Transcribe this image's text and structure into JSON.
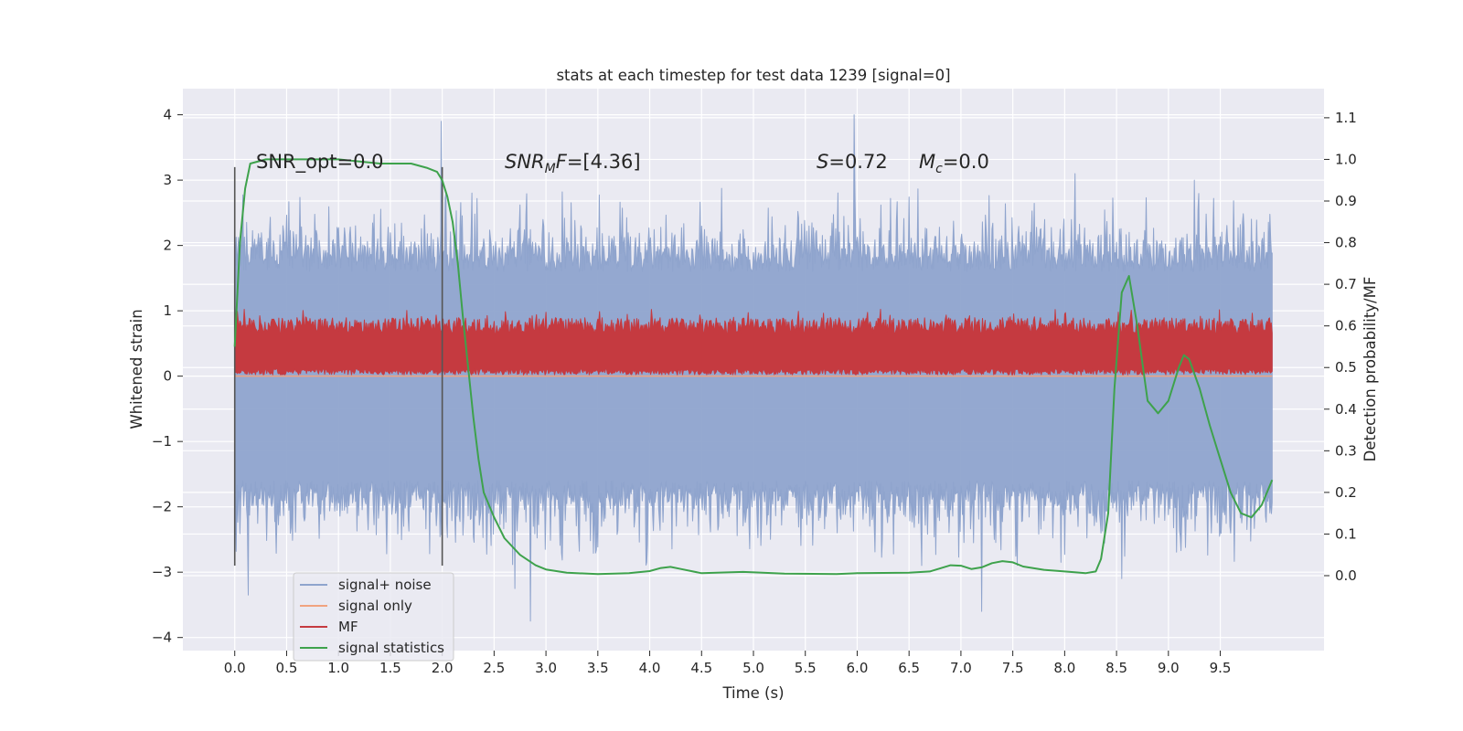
{
  "chart_data": {
    "type": "line",
    "title": "stats at each timestep for test data 1239 [signal=0]",
    "xlabel": "Time (s)",
    "ylabel": "Whitened strain",
    "y2label": "Detection probability/MF",
    "xlim": [
      -0.5,
      10.5
    ],
    "ylim": [
      -4.2,
      4.4
    ],
    "y2lim": [
      -0.18,
      1.17
    ],
    "xticks": [
      0.0,
      0.5,
      1.0,
      1.5,
      2.0,
      2.5,
      3.0,
      3.5,
      4.0,
      4.5,
      5.0,
      5.5,
      6.0,
      6.5,
      7.0,
      7.5,
      8.0,
      8.5,
      9.0,
      9.5
    ],
    "xtick_labels": [
      "0.0",
      "0.5",
      "1.0",
      "1.5",
      "2.0",
      "2.5",
      "3.0",
      "3.5",
      "4.0",
      "4.5",
      "5.0",
      "5.5",
      "6.0",
      "6.5",
      "7.0",
      "7.5",
      "8.0",
      "8.5",
      "9.0",
      "9.5"
    ],
    "yticks": [
      -4,
      -3,
      -2,
      -1,
      0,
      1,
      2,
      3,
      4
    ],
    "ytick_labels": [
      "−4",
      "−3",
      "−2",
      "−1",
      "0",
      "1",
      "2",
      "3",
      "4"
    ],
    "y2ticks": [
      0.0,
      0.1,
      0.2,
      0.3,
      0.4,
      0.5,
      0.6,
      0.7,
      0.8,
      0.9,
      1.0,
      1.1
    ],
    "y2tick_labels": [
      "0.0",
      "0.1",
      "0.2",
      "0.3",
      "0.4",
      "0.5",
      "0.6",
      "0.7",
      "0.8",
      "0.9",
      "1.0",
      "1.1"
    ],
    "grid": true,
    "legend_position": "lower-left",
    "series": [
      {
        "name": "signal+ noise",
        "axis": "left",
        "color": "#8fa4cd",
        "x_range": [
          0.0,
          10.0
        ],
        "typical_range": [
          -1.6,
          1.6
        ],
        "peak_values": [
          {
            "x": 1.99,
            "y": 3.9
          },
          {
            "x": 5.97,
            "y": 4.0
          },
          {
            "x": 2.85,
            "y": -3.75
          },
          {
            "x": 7.2,
            "y": -3.6
          },
          {
            "x": 0.13,
            "y": -3.35
          },
          {
            "x": 2.7,
            "y": -3.25
          },
          {
            "x": 8.55,
            "y": -3.1
          },
          {
            "x": 9.25,
            "y": 3.0
          },
          {
            "x": 8.1,
            "y": 3.1
          }
        ]
      },
      {
        "name": "signal only",
        "axis": "left",
        "color": "#f1a37f",
        "x": [
          0.0,
          10.0
        ],
        "y": [
          0.0,
          0.0
        ]
      },
      {
        "name": "MF",
        "axis": "right",
        "color": "#c53a40",
        "x_range": [
          0.0,
          10.0
        ],
        "typical_range": [
          0.49,
          0.6
        ],
        "peak_value": 0.64
      },
      {
        "name": "signal statistics",
        "axis": "right",
        "color": "#3ea24c",
        "x": [
          0.0,
          0.05,
          0.1,
          0.15,
          0.3,
          0.6,
          1.0,
          1.4,
          1.7,
          1.85,
          1.95,
          2.0,
          2.05,
          2.1,
          2.15,
          2.2,
          2.25,
          2.3,
          2.35,
          2.4,
          2.5,
          2.6,
          2.75,
          2.9,
          3.0,
          3.2,
          3.5,
          3.8,
          4.0,
          4.1,
          4.2,
          4.3,
          4.5,
          4.9,
          5.3,
          5.8,
          6.0,
          6.5,
          6.7,
          6.9,
          7.0,
          7.1,
          7.2,
          7.3,
          7.4,
          7.5,
          7.6,
          7.8,
          8.0,
          8.2,
          8.3,
          8.35,
          8.42,
          8.48,
          8.55,
          8.62,
          8.7,
          8.8,
          8.9,
          9.0,
          9.1,
          9.15,
          9.2,
          9.3,
          9.4,
          9.5,
          9.6,
          9.7,
          9.8,
          9.9,
          10.0
        ],
        "y": [
          0.55,
          0.8,
          0.93,
          0.99,
          1.0,
          1.0,
          1.0,
          0.99,
          0.99,
          0.98,
          0.97,
          0.95,
          0.91,
          0.85,
          0.75,
          0.62,
          0.5,
          0.38,
          0.28,
          0.2,
          0.14,
          0.09,
          0.05,
          0.025,
          0.015,
          0.007,
          0.004,
          0.006,
          0.011,
          0.018,
          0.021,
          0.016,
          0.006,
          0.009,
          0.005,
          0.004,
          0.006,
          0.007,
          0.01,
          0.025,
          0.024,
          0.016,
          0.02,
          0.03,
          0.035,
          0.032,
          0.022,
          0.014,
          0.01,
          0.006,
          0.01,
          0.04,
          0.15,
          0.45,
          0.68,
          0.72,
          0.6,
          0.42,
          0.39,
          0.42,
          0.5,
          0.53,
          0.52,
          0.45,
          0.36,
          0.28,
          0.2,
          0.15,
          0.14,
          0.17,
          0.23
        ]
      }
    ],
    "vertical_markers": [
      {
        "x": 0.0,
        "y_range": [
          -2.9,
          3.2
        ],
        "color": "#555555"
      },
      {
        "x": 2.0,
        "y_range": [
          -2.9,
          3.2
        ],
        "color": "#555555"
      }
    ],
    "annotations": {
      "snr_opt": "SNR_opt=0.0",
      "snr_mf_sym": "SNR",
      "snr_mf_sub": "M",
      "snr_mf_tail": "F",
      "snr_mf_val": "=[4.36]",
      "s_sym": "S",
      "s_val": "=0.72",
      "mc_sym": "M",
      "mc_sub": "c",
      "mc_val": "=0.0"
    }
  }
}
